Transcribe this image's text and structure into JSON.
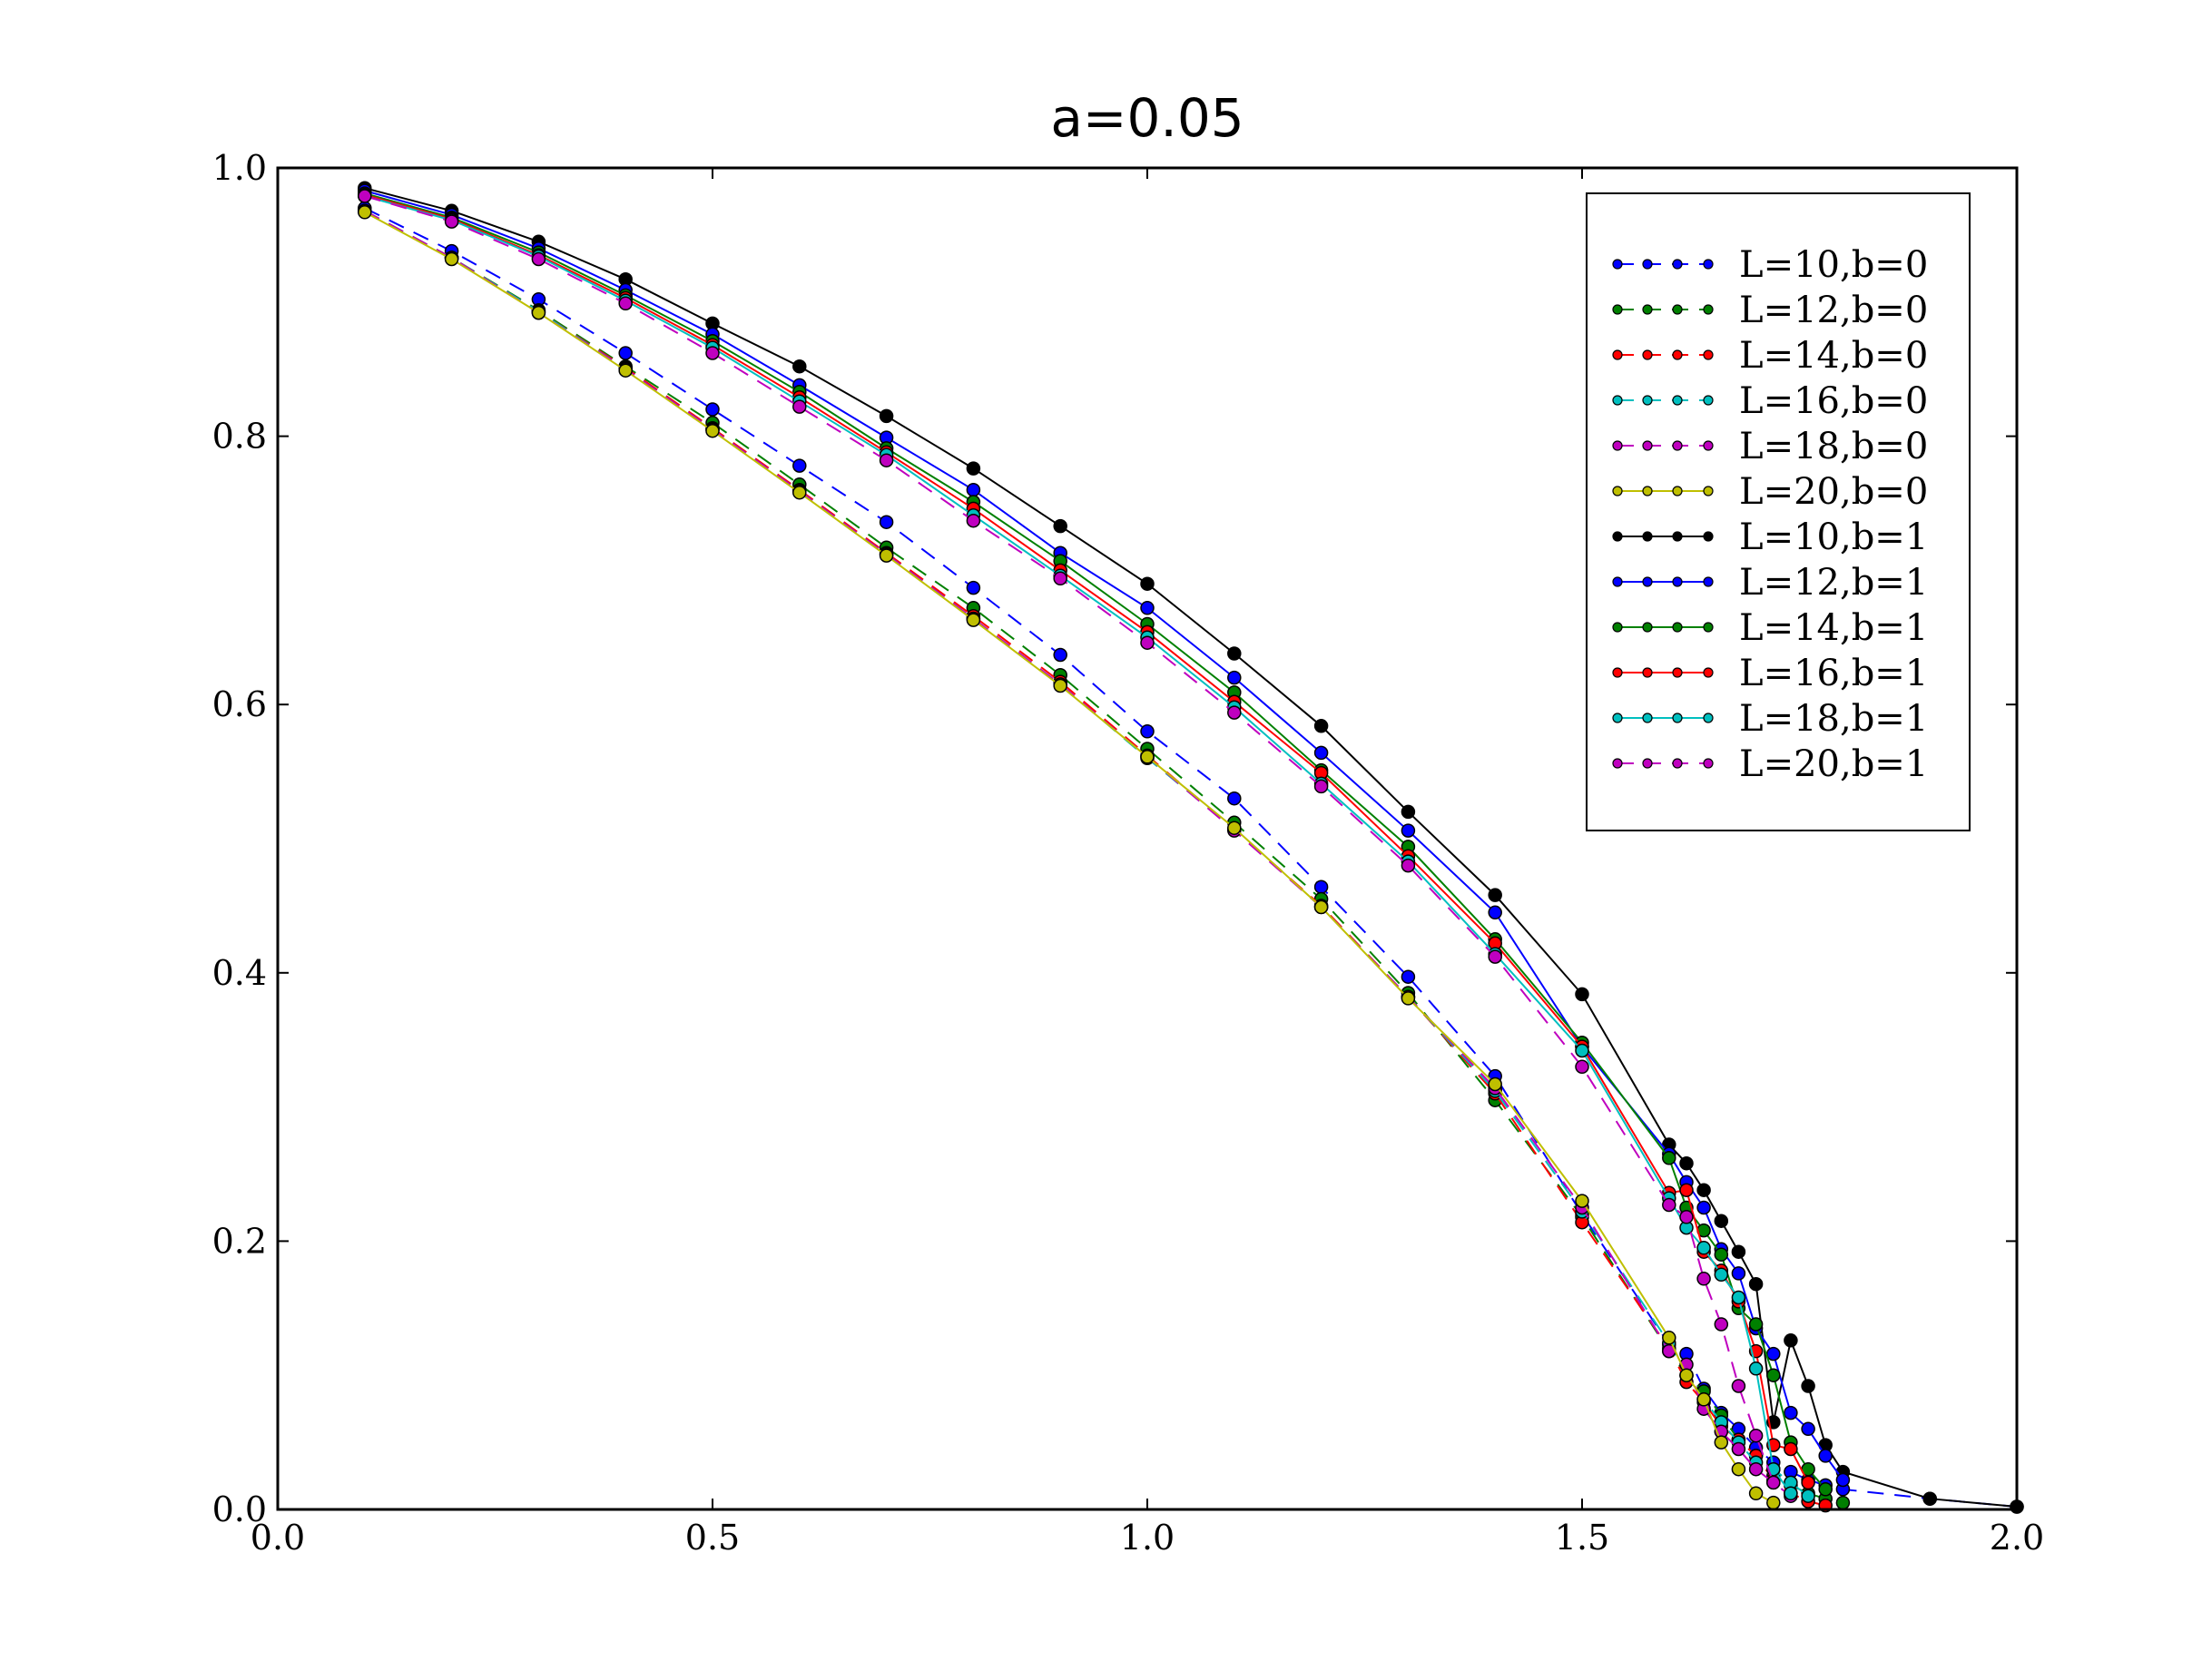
{
  "chart_data": {
    "type": "line",
    "title": "a=0.05",
    "xlabel": "",
    "ylabel": "",
    "xlim": [
      0.0,
      2.0
    ],
    "ylim": [
      0.0,
      1.0
    ],
    "x_ticks": [
      "0.0",
      "0.5",
      "1.0",
      "1.5",
      "2.0"
    ],
    "y_ticks": [
      "0.0",
      "0.2",
      "0.4",
      "0.6",
      "0.8",
      "1.0"
    ],
    "grid": false,
    "legend_position": "top-right",
    "series": [
      {
        "name": "L=10,b=0",
        "color": "#0000ff",
        "dash": "dashed",
        "x": [
          0.1,
          0.2,
          0.3,
          0.4,
          0.5,
          0.6,
          0.7,
          0.8,
          0.9,
          1.0,
          1.1,
          1.2,
          1.3,
          1.4,
          1.5,
          1.6,
          1.62,
          1.64,
          1.66,
          1.68,
          1.7,
          1.72,
          1.74,
          1.76,
          1.78,
          1.8,
          1.9,
          2.0
        ],
        "y": [
          0.97,
          0.938,
          0.902,
          0.862,
          0.82,
          0.778,
          0.736,
          0.687,
          0.637,
          0.58,
          0.53,
          0.464,
          0.397,
          0.323,
          0.22,
          0.123,
          0.116,
          0.09,
          0.072,
          0.06,
          0.046,
          0.035,
          0.028,
          0.022,
          0.018,
          0.015,
          0.008,
          0.002
        ]
      },
      {
        "name": "L=12,b=0",
        "color": "#008000",
        "dash": "dashed",
        "x": [
          0.1,
          0.2,
          0.3,
          0.4,
          0.5,
          0.6,
          0.7,
          0.8,
          0.9,
          1.0,
          1.1,
          1.2,
          1.3,
          1.4,
          1.5,
          1.6,
          1.62,
          1.64,
          1.66,
          1.68,
          1.7,
          1.72,
          1.74,
          1.76,
          1.78,
          1.8
        ],
        "y": [
          0.968,
          0.933,
          0.894,
          0.852,
          0.81,
          0.764,
          0.717,
          0.672,
          0.622,
          0.567,
          0.512,
          0.455,
          0.385,
          0.305,
          0.218,
          0.118,
          0.1,
          0.088,
          0.07,
          0.052,
          0.04,
          0.025,
          0.018,
          0.012,
          0.008,
          0.005
        ]
      },
      {
        "name": "L=14,b=0",
        "color": "#ff0000",
        "dash": "dashed",
        "x": [
          0.1,
          0.2,
          0.3,
          0.4,
          0.5,
          0.6,
          0.7,
          0.8,
          0.9,
          1.0,
          1.1,
          1.2,
          1.3,
          1.4,
          1.5,
          1.6,
          1.62,
          1.64,
          1.66,
          1.68,
          1.7,
          1.72,
          1.74,
          1.76,
          1.78
        ],
        "y": [
          0.968,
          0.933,
          0.893,
          0.851,
          0.806,
          0.76,
          0.713,
          0.666,
          0.617,
          0.562,
          0.507,
          0.45,
          0.382,
          0.31,
          0.214,
          0.12,
          0.095,
          0.08,
          0.062,
          0.052,
          0.04,
          0.022,
          0.012,
          0.006,
          0.003
        ]
      },
      {
        "name": "L=16,b=0",
        "color": "#00bfbf",
        "dash": "dashed",
        "x": [
          0.1,
          0.2,
          0.3,
          0.4,
          0.5,
          0.6,
          0.7,
          0.8,
          0.9,
          1.0,
          1.1,
          1.2,
          1.3,
          1.4,
          1.5,
          1.6,
          1.62,
          1.64,
          1.66,
          1.68,
          1.7,
          1.72,
          1.74,
          1.76
        ],
        "y": [
          0.968,
          0.933,
          0.893,
          0.85,
          0.805,
          0.759,
          0.712,
          0.664,
          0.615,
          0.56,
          0.507,
          0.449,
          0.382,
          0.312,
          0.222,
          0.124,
          0.1,
          0.082,
          0.065,
          0.05,
          0.035,
          0.03,
          0.02,
          0.01
        ]
      },
      {
        "name": "L=18,b=0",
        "color": "#bf00bf",
        "dash": "dashed",
        "x": [
          0.1,
          0.2,
          0.3,
          0.4,
          0.5,
          0.6,
          0.7,
          0.8,
          0.9,
          1.0,
          1.1,
          1.2,
          1.3,
          1.4,
          1.5,
          1.6,
          1.62,
          1.64,
          1.66,
          1.68,
          1.7,
          1.72,
          1.74
        ],
        "y": [
          0.968,
          0.933,
          0.892,
          0.85,
          0.805,
          0.759,
          0.712,
          0.664,
          0.615,
          0.561,
          0.506,
          0.449,
          0.382,
          0.314,
          0.225,
          0.118,
          0.108,
          0.075,
          0.058,
          0.045,
          0.03,
          0.02,
          0.01
        ]
      },
      {
        "name": "L=20,b=0",
        "color": "#bfbf00",
        "dash": "solid",
        "x": [
          0.1,
          0.2,
          0.3,
          0.4,
          0.5,
          0.6,
          0.7,
          0.8,
          0.9,
          1.0,
          1.1,
          1.2,
          1.3,
          1.4,
          1.5,
          1.6,
          1.62,
          1.64,
          1.66,
          1.68,
          1.7,
          1.72
        ],
        "y": [
          0.967,
          0.932,
          0.892,
          0.849,
          0.804,
          0.758,
          0.711,
          0.663,
          0.614,
          0.561,
          0.508,
          0.449,
          0.381,
          0.317,
          0.23,
          0.128,
          0.1,
          0.082,
          0.05,
          0.03,
          0.012,
          0.005
        ]
      },
      {
        "name": "L=10,b=1",
        "color": "#000000",
        "dash": "solid",
        "x": [
          0.1,
          0.2,
          0.3,
          0.4,
          0.5,
          0.6,
          0.7,
          0.8,
          0.9,
          1.0,
          1.1,
          1.2,
          1.3,
          1.4,
          1.5,
          1.6,
          1.62,
          1.64,
          1.66,
          1.68,
          1.7,
          1.72,
          1.74,
          1.76,
          1.78,
          1.8,
          1.9,
          2.0
        ],
        "y": [
          0.985,
          0.968,
          0.945,
          0.917,
          0.884,
          0.852,
          0.815,
          0.776,
          0.733,
          0.69,
          0.638,
          0.584,
          0.52,
          0.458,
          0.384,
          0.272,
          0.258,
          0.238,
          0.215,
          0.192,
          0.168,
          0.065,
          0.126,
          0.092,
          0.048,
          0.028,
          0.008,
          0.002
        ]
      },
      {
        "name": "L=12,b=1",
        "color": "#0000ff",
        "dash": "solid",
        "x": [
          0.1,
          0.2,
          0.3,
          0.4,
          0.5,
          0.6,
          0.7,
          0.8,
          0.9,
          1.0,
          1.1,
          1.2,
          1.3,
          1.4,
          1.5,
          1.6,
          1.62,
          1.64,
          1.66,
          1.68,
          1.7,
          1.72,
          1.74,
          1.76,
          1.78,
          1.8
        ],
        "y": [
          0.983,
          0.965,
          0.94,
          0.909,
          0.876,
          0.838,
          0.799,
          0.76,
          0.713,
          0.672,
          0.62,
          0.564,
          0.506,
          0.445,
          0.345,
          0.265,
          0.244,
          0.225,
          0.194,
          0.176,
          0.135,
          0.116,
          0.072,
          0.06,
          0.04,
          0.022
        ]
      },
      {
        "name": "L=14,b=1",
        "color": "#008000",
        "dash": "solid",
        "x": [
          0.1,
          0.2,
          0.3,
          0.4,
          0.5,
          0.6,
          0.7,
          0.8,
          0.9,
          1.0,
          1.1,
          1.2,
          1.3,
          1.4,
          1.5,
          1.6,
          1.62,
          1.64,
          1.66,
          1.68,
          1.7,
          1.72,
          1.74,
          1.76,
          1.78
        ],
        "y": [
          0.981,
          0.963,
          0.937,
          0.905,
          0.871,
          0.833,
          0.791,
          0.751,
          0.707,
          0.66,
          0.609,
          0.551,
          0.494,
          0.425,
          0.348,
          0.262,
          0.225,
          0.208,
          0.19,
          0.15,
          0.138,
          0.1,
          0.05,
          0.03,
          0.015
        ]
      },
      {
        "name": "L=16,b=1",
        "color": "#ff0000",
        "dash": "solid",
        "x": [
          0.1,
          0.2,
          0.3,
          0.4,
          0.5,
          0.6,
          0.7,
          0.8,
          0.9,
          1.0,
          1.1,
          1.2,
          1.3,
          1.4,
          1.5,
          1.6,
          1.62,
          1.64,
          1.66,
          1.68,
          1.7,
          1.72,
          1.74,
          1.76
        ],
        "y": [
          0.98,
          0.962,
          0.935,
          0.903,
          0.868,
          0.829,
          0.788,
          0.746,
          0.7,
          0.654,
          0.602,
          0.549,
          0.487,
          0.422,
          0.345,
          0.236,
          0.238,
          0.192,
          0.178,
          0.155,
          0.118,
          0.048,
          0.045,
          0.02
        ]
      },
      {
        "name": "L=18,b=1",
        "color": "#00bfbf",
        "dash": "solid",
        "x": [
          0.1,
          0.2,
          0.3,
          0.4,
          0.5,
          0.6,
          0.7,
          0.8,
          0.9,
          1.0,
          1.1,
          1.2,
          1.3,
          1.4,
          1.5,
          1.6,
          1.62,
          1.64,
          1.66,
          1.68,
          1.7,
          1.72,
          1.74
        ],
        "y": [
          0.979,
          0.961,
          0.934,
          0.901,
          0.866,
          0.826,
          0.786,
          0.741,
          0.696,
          0.65,
          0.598,
          0.541,
          0.483,
          0.414,
          0.342,
          0.232,
          0.21,
          0.195,
          0.175,
          0.158,
          0.105,
          0.03,
          0.012
        ]
      },
      {
        "name": "L=20,b=1",
        "color": "#bf00bf",
        "dash": "dashed",
        "x": [
          0.1,
          0.2,
          0.3,
          0.4,
          0.5,
          0.6,
          0.7,
          0.8,
          0.9,
          1.0,
          1.1,
          1.2,
          1.3,
          1.4,
          1.5,
          1.6,
          1.62,
          1.64,
          1.66,
          1.68,
          1.7,
          1.72
        ],
        "y": [
          0.979,
          0.96,
          0.932,
          0.899,
          0.862,
          0.822,
          0.782,
          0.737,
          0.694,
          0.646,
          0.594,
          0.539,
          0.48,
          0.412,
          0.33,
          0.227,
          0.218,
          0.172,
          0.138,
          0.092,
          0.055,
          0.02
        ]
      }
    ]
  }
}
